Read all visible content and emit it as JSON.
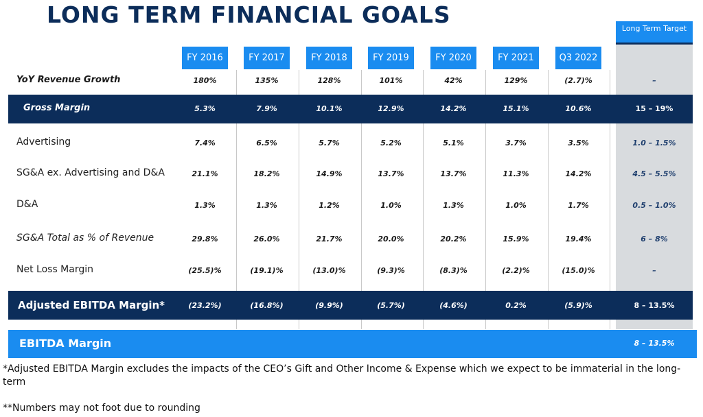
{
  "title": "LONG TERM FINANCIAL GOALS",
  "target_header": "Long Term Target",
  "years": [
    "FY 2016",
    "FY 2017",
    "FY 2018",
    "FY 2019",
    "FY 2020",
    "FY 2021",
    "Q3 2022"
  ],
  "rows": {
    "yoy": {
      "label": "YoY Revenue Growth",
      "values": [
        "180%",
        "135%",
        "128%",
        "101%",
        "42%",
        "129%",
        "(2.7)%"
      ],
      "target": "–"
    },
    "gross": {
      "label": "Gross Margin",
      "values": [
        "5.3%",
        "7.9%",
        "10.1%",
        "12.9%",
        "14.2%",
        "15.1%",
        "10.6%"
      ],
      "target": "15 – 19%"
    },
    "adv": {
      "label": "Advertising",
      "values": [
        "7.4%",
        "6.5%",
        "5.7%",
        "5.2%",
        "5.1%",
        "3.7%",
        "3.5%"
      ],
      "target": "1.0 – 1.5%"
    },
    "sga": {
      "label": "SG&A ex. Advertising and D&A",
      "values": [
        "21.1%",
        "18.2%",
        "14.9%",
        "13.7%",
        "13.7%",
        "11.3%",
        "14.2%"
      ],
      "target": "4.5 – 5.5%"
    },
    "da": {
      "label": "D&A",
      "values": [
        "1.3%",
        "1.3%",
        "1.2%",
        "1.0%",
        "1.3%",
        "1.0%",
        "1.7%"
      ],
      "target": "0.5 – 1.0%"
    },
    "sgatotal": {
      "label": "SG&A Total as % of Revenue",
      "values": [
        "29.8%",
        "26.0%",
        "21.7%",
        "20.0%",
        "20.2%",
        "15.9%",
        "19.4%"
      ],
      "target": "6 – 8%"
    },
    "netloss": {
      "label": "Net Loss Margin",
      "values": [
        "(25.5)%",
        "(19.1)%",
        "(13.0)%",
        "(9.3)%",
        "(8.3)%",
        "(2.2)%",
        "(15.0)%"
      ],
      "target": "–"
    },
    "adjebitda": {
      "label": "Adjusted EBITDA Margin*",
      "values": [
        "(23.2%)",
        "(16.8%)",
        "(9.9%)",
        "(5.7%)",
        "(4.6%)",
        "0.2%",
        "(5.9)%"
      ],
      "target": "8 – 13.5%"
    },
    "ebitda": {
      "label": "EBITDA Margin",
      "target": "8 – 13.5%"
    }
  },
  "footnotes": [
    "*Adjusted EBITDA Margin excludes the impacts of the CEO’s Gift and Other Income & Expense which we expect to be immaterial in the long-term",
    "**Numbers may not foot due to rounding"
  ]
}
